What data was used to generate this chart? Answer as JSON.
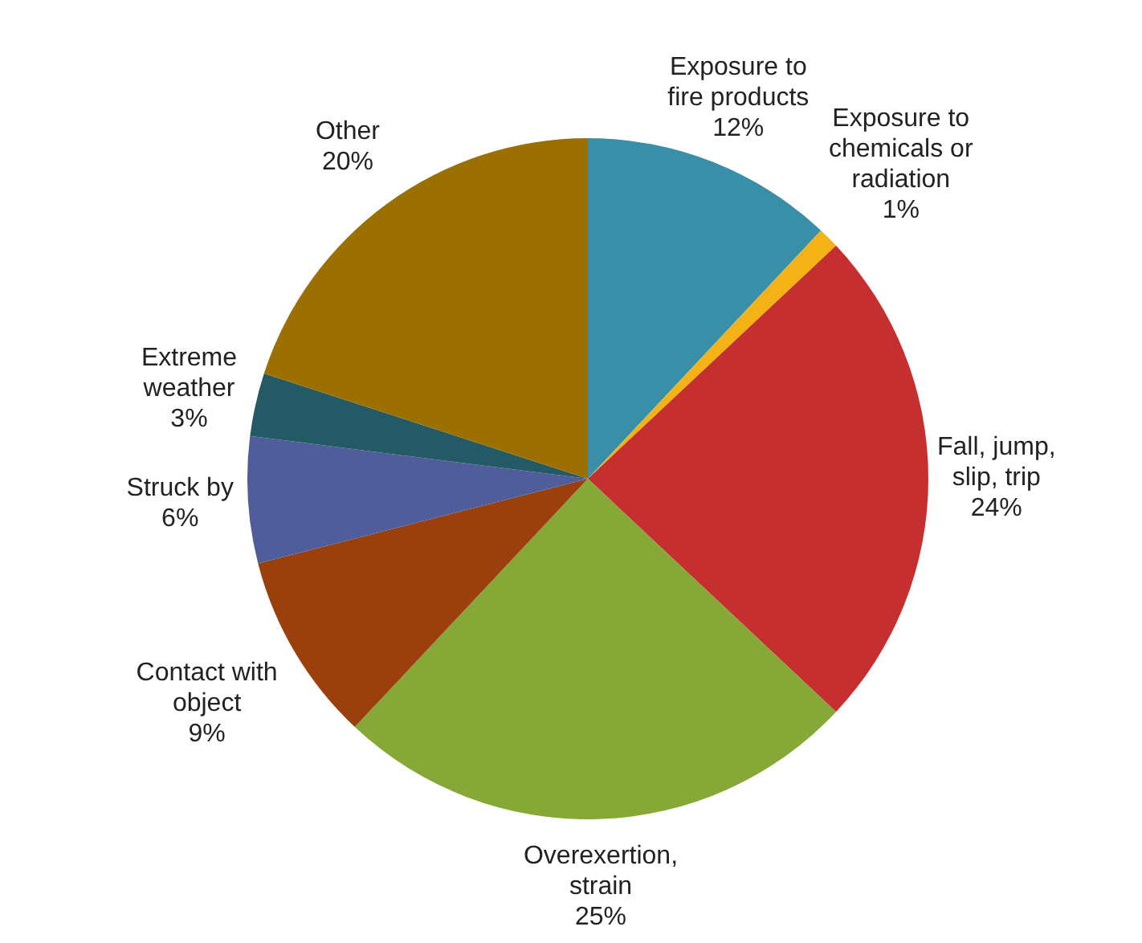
{
  "chart_data": {
    "type": "pie",
    "categories": [
      "Exposure to fire products",
      "Exposure to chemicals or radiation",
      "Fall, jump, slip, trip",
      "Overexertion, strain",
      "Contact with object",
      "Struck by",
      "Extreme weather",
      "Other"
    ],
    "values": [
      12,
      1,
      24,
      25,
      9,
      6,
      3,
      20
    ],
    "colors": [
      "#3a8fa8",
      "#f5b217",
      "#c62f30",
      "#86a836",
      "#9b3f0c",
      "#4f5e9a",
      "#235a66",
      "#9c7000"
    ],
    "value_labels": [
      "12%",
      "1%",
      "24%",
      "25%",
      "9%",
      "6%",
      "3%",
      "20%"
    ]
  }
}
